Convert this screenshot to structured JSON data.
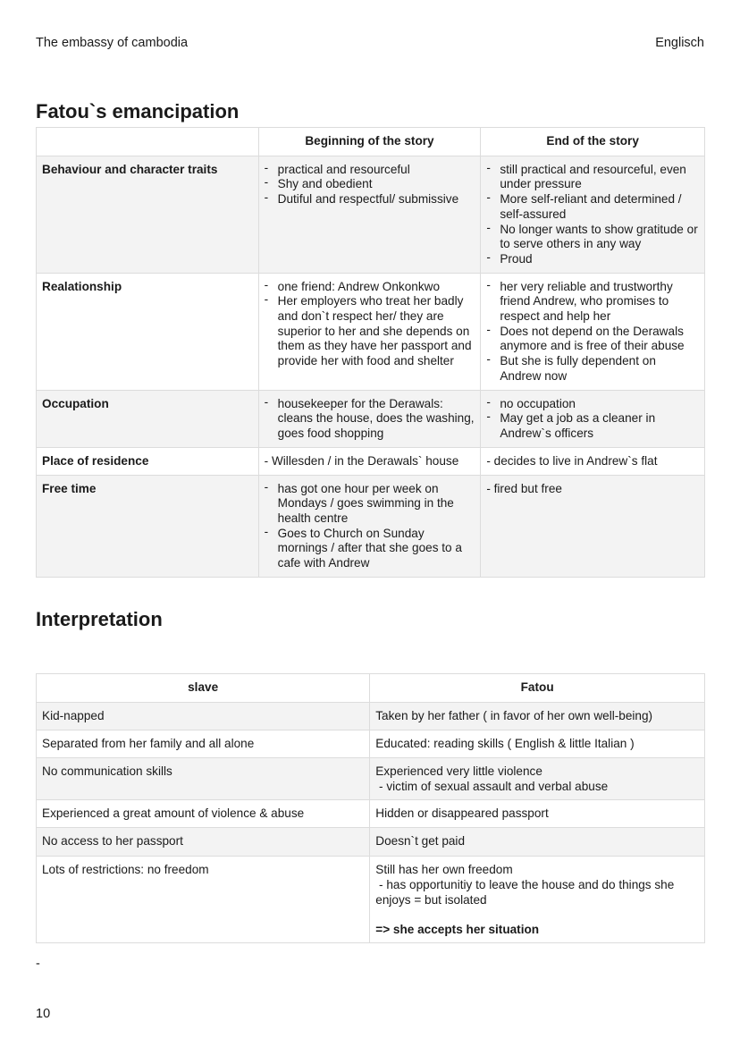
{
  "header": {
    "left": "The embassy of cambodia",
    "right": "Englisch"
  },
  "section1": {
    "title": "Fatou`s emancipation",
    "columns": [
      "",
      "Beginning of the story",
      "End of the story"
    ],
    "rows": [
      {
        "label": "Behaviour and character traits",
        "beginning": [
          "practical and resourceful",
          "Shy and obedient",
          "Dutiful and respectful/ submissive"
        ],
        "end": [
          "still practical and resourceful, even under pressure",
          "More self-reliant and determined / self-assured",
          "No longer wants to show gratitude or to serve others in any way",
          "Proud"
        ]
      },
      {
        "label": "Realationship",
        "beginning": [
          "one friend: Andrew Onkonkwo",
          "Her employers who treat her badly and don`t respect her/ they are superior to her and she depends on them as they have her passport and provide her with food and shelter"
        ],
        "end": [
          "her very reliable and trustworthy friend Andrew, who promises to respect and help her",
          "Does not depend on the Derawals anymore and is free of their abuse",
          "But she is fully dependent on Andrew now"
        ]
      },
      {
        "label": "Occupation",
        "beginning": [
          "housekeeper for the Derawals: cleans the house, does the washing, goes food shopping"
        ],
        "end": [
          "no occupation",
          "May get a job as a cleaner in Andrew`s officers"
        ]
      },
      {
        "label": "Place of residence",
        "beginning_text": "- Willesden / in the Derawals` house",
        "end_text": "- decides to live in Andrew`s flat"
      },
      {
        "label": "Free time",
        "beginning": [
          "has got one hour per week on Mondays / goes swimming in the health centre",
          "Goes to Church on Sunday mornings / after that she goes to a cafe with Andrew"
        ],
        "end_text": "- fired but free"
      }
    ]
  },
  "section2": {
    "title": "Interpretation",
    "columns": [
      "slave",
      "Fatou"
    ],
    "rows": [
      {
        "slave": "Kid-napped",
        "fatou": [
          "Taken by her father ( in favor of her own well-being)"
        ]
      },
      {
        "slave": "Separated from her family and all alone",
        "fatou": [
          "Educated: reading skills ( English & little Italian )"
        ]
      },
      {
        "slave": "No communication skills",
        "fatou": [
          "Experienced very little violence",
          " - victim of sexual assault and verbal abuse"
        ]
      },
      {
        "slave": "Experienced a great amount of violence & abuse",
        "fatou": [
          "Hidden or disappeared passport"
        ]
      },
      {
        "slave": "No access to her passport",
        "fatou": [
          "Doesn`t get paid"
        ]
      },
      {
        "slave": "Lots of restrictions: no freedom",
        "fatou": [
          "Still has her own freedom",
          " - has opportunitiy to leave the house and do things she enjoys = but isolated"
        ],
        "conclusion": "=> she accepts her situation"
      }
    ]
  },
  "footer": {
    "dash": "-",
    "page_number": "10"
  }
}
